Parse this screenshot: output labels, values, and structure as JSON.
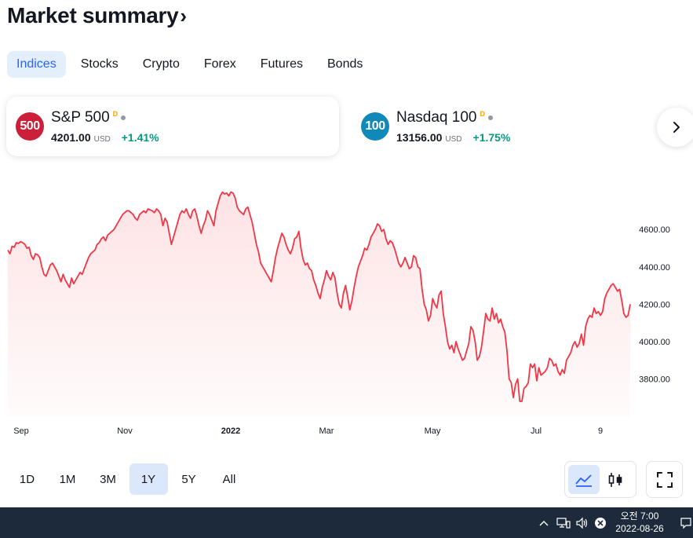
{
  "header": {
    "title": "Market summary",
    "chevron": "›"
  },
  "tabs": [
    {
      "label": "Indices",
      "active": true
    },
    {
      "label": "Stocks"
    },
    {
      "label": "Crypto"
    },
    {
      "label": "Forex"
    },
    {
      "label": "Futures"
    },
    {
      "label": "Bonds"
    }
  ],
  "cards": [
    {
      "badge": "500",
      "badge_color": "#cc1f3a",
      "name": "S&P 500",
      "flag": "D",
      "price": "4201.00",
      "currency": "USD",
      "change": "+1.41%"
    },
    {
      "badge": "100",
      "badge_color": "#1189b8",
      "name": "Nasdaq 100",
      "flag": "D",
      "price": "13156.00",
      "currency": "USD",
      "change": "+1.75%"
    }
  ],
  "icons": {
    "next": "chevron-right-icon",
    "area_chart": "area-chart-icon",
    "candles": "candlestick-icon",
    "fullscreen": "fullscreen-icon"
  },
  "ranges": [
    {
      "label": "1D"
    },
    {
      "label": "1M"
    },
    {
      "label": "3M"
    },
    {
      "label": "1Y",
      "active": true
    },
    {
      "label": "5Y"
    },
    {
      "label": "All"
    }
  ],
  "taskbar": {
    "time": "오전 7:00",
    "date": "2022-08-26"
  },
  "colors": {
    "line": "#f23645",
    "positive": "#089981",
    "accent": "#2962ff"
  },
  "chart_data": {
    "type": "area",
    "series": [
      {
        "values": [
          4490,
          4470,
          4510,
          4505,
          4530,
          4525,
          4535,
          4530,
          4520,
          4500,
          4505,
          4460,
          4440,
          4470,
          4465,
          4450,
          4400,
          4360,
          4350,
          4380,
          4410,
          4420,
          4400,
          4380,
          4350,
          4320,
          4360,
          4330,
          4310,
          4290,
          4340,
          4310,
          4330,
          4350,
          4370,
          4360,
          4390,
          4420,
          4450,
          4470,
          4480,
          4490,
          4520,
          4530,
          4550,
          4560,
          4540,
          4570,
          4580,
          4590,
          4600,
          4620,
          4640,
          4660,
          4680,
          4690,
          4700,
          4700,
          4690,
          4680,
          4660,
          4650,
          4680,
          4690,
          4700,
          4690,
          4710,
          4705,
          4700,
          4690,
          4710,
          4700,
          4680,
          4620,
          4660,
          4640,
          4580,
          4520,
          4560,
          4600,
          4640,
          4680,
          4700,
          4690,
          4710,
          4680,
          4660,
          4700,
          4710,
          4670,
          4620,
          4580,
          4620,
          4650,
          4700,
          4680,
          4650,
          4620,
          4700,
          4740,
          4780,
          4800,
          4790,
          4795,
          4780,
          4800,
          4795,
          4770,
          4720,
          4700,
          4690,
          4680,
          4710,
          4720,
          4680,
          4640,
          4580,
          4520,
          4480,
          4420,
          4400,
          4380,
          4360,
          4340,
          4320,
          4380,
          4450,
          4500,
          4540,
          4580,
          4560,
          4520,
          4490,
          4470,
          4500,
          4550,
          4560,
          4590,
          4500,
          4440,
          4410,
          4420,
          4390,
          4380,
          4330,
          4300,
          4260,
          4230,
          4290,
          4330,
          4380,
          4350,
          4330,
          4370,
          4340,
          4260,
          4200,
          4180,
          4260,
          4300,
          4240,
          4170,
          4220,
          4290,
          4350,
          4400,
          4430,
          4460,
          4500,
          4490,
          4520,
          4560,
          4580,
          4600,
          4630,
          4620,
          4590,
          4600,
          4550,
          4520,
          4540,
          4530,
          4500,
          4460,
          4420,
          4400,
          4420,
          4450,
          4420,
          4390,
          4400,
          4460,
          4450,
          4400,
          4390,
          4280,
          4200,
          4170,
          4110,
          4140,
          4230,
          4200,
          4180,
          4250,
          4270,
          4150,
          4080,
          4000,
          3960,
          3980,
          3940,
          4000,
          3960,
          3930,
          3900,
          3910,
          3950,
          3990,
          4080,
          4060,
          4000,
          3900,
          3920,
          3970,
          4060,
          4150,
          4120,
          4110,
          4180,
          4120,
          4150,
          4100,
          4120,
          4080,
          4050,
          3950,
          3800,
          3780,
          3700,
          3770,
          3800,
          3680,
          3680,
          3750,
          3760,
          3780,
          3880,
          3860,
          3880,
          3790,
          3860,
          3820,
          3830,
          3840,
          3860,
          3910,
          3900,
          3870,
          3880,
          3840,
          3820,
          3850,
          3830,
          3900,
          3920,
          3940,
          3980,
          4000,
          3970,
          3990,
          4040,
          3980,
          4080,
          4120,
          4140,
          4130,
          4180,
          4150,
          4160,
          4140,
          4160,
          4230,
          4260,
          4280,
          4300,
          4310,
          4290,
          4270,
          4280,
          4220,
          4150,
          4130,
          4140,
          4200
        ]
      }
    ],
    "xticks": [
      "Sep",
      "Nov",
      "2022",
      "Mar",
      "May",
      "Jul",
      "9"
    ],
    "yticks": [
      "3800.00",
      "4000.00",
      "4200.00",
      "4400.00",
      "4600.00"
    ],
    "ylim": [
      3600,
      4870
    ]
  }
}
